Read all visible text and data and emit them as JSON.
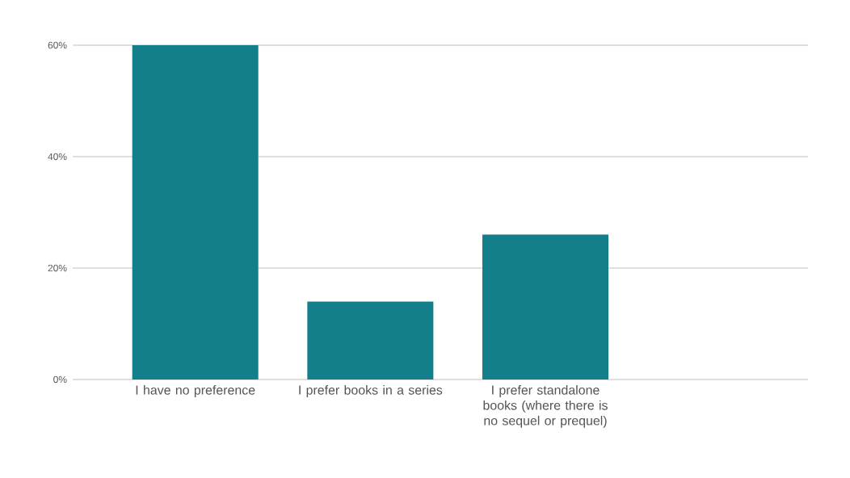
{
  "chart_data": {
    "type": "bar",
    "categories": [
      "I have no preference",
      "I prefer books in a series",
      "I prefer standalone books (where there is no sequel or prequel)"
    ],
    "values": [
      60,
      14,
      26
    ],
    "color": "#137f8a",
    "ylim": [
      0,
      60
    ],
    "yticks": [
      {
        "value": 0,
        "label": "0%"
      },
      {
        "value": 20,
        "label": "20%"
      },
      {
        "value": 40,
        "label": "40%"
      },
      {
        "value": 60,
        "label": "60%"
      }
    ],
    "grid": "y"
  }
}
